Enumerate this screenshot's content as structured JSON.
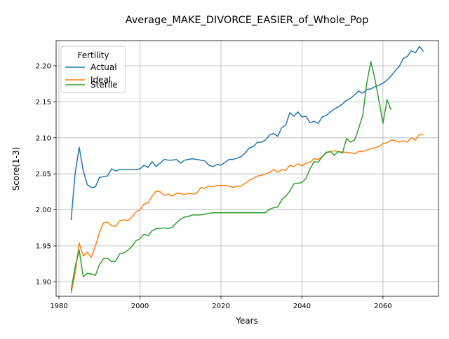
{
  "chart_data": {
    "type": "line",
    "title": "Average_MAKE_DIVORCE_EASIER_of_Whole_Pop",
    "xlabel": "Years",
    "ylabel": "Score(1-3)",
    "xlim": [
      1979.65,
      1980.0
    ],
    "ylim": [
      1.88,
      2.235
    ],
    "xticks": [
      1980,
      2000,
      2020,
      2040,
      2060
    ],
    "yticks": [
      1.9,
      1.95,
      2.0,
      2.05,
      2.1,
      2.15,
      2.2
    ],
    "grid": true,
    "legend": {
      "title": "Fertility",
      "placement": "top-left"
    },
    "series": [
      {
        "name": "Actual",
        "color": "#1f77b4",
        "x": [
          1983,
          1984,
          1985,
          1986,
          1987,
          1988,
          1989,
          1990,
          1991,
          1992,
          1993,
          1994,
          1995,
          1996,
          1997,
          1998,
          1999,
          2000,
          2001,
          2002,
          2003,
          2004,
          2005,
          2006,
          2007,
          2008,
          2009,
          2010,
          2011,
          2012,
          2013,
          2014,
          2015,
          2016,
          2017,
          2018,
          2019,
          2020,
          2021,
          2022,
          2023,
          2024,
          2025,
          2026,
          2027,
          2028,
          2029,
          2030,
          2031,
          2032,
          2033,
          2034,
          2035,
          2036,
          2037,
          2038,
          2039,
          2040,
          2041,
          2042,
          2043,
          2044,
          2045,
          2046,
          2047,
          2048,
          2049,
          2050,
          2051,
          2052,
          2053,
          2054,
          2055,
          2056,
          2057,
          2058,
          2059,
          2060,
          2061,
          2062,
          2063,
          2064,
          2065,
          2066,
          2067,
          2068,
          2069,
          2070
        ],
        "values": [
          1.986,
          2.051,
          2.087,
          2.054,
          2.035,
          2.031,
          2.032,
          2.045,
          2.046,
          2.047,
          2.057,
          2.054,
          2.056,
          2.056,
          2.056,
          2.056,
          2.056,
          2.057,
          2.062,
          2.059,
          2.067,
          2.06,
          2.065,
          2.07,
          2.069,
          2.069,
          2.07,
          2.065,
          2.069,
          2.07,
          2.071,
          2.07,
          2.069,
          2.068,
          2.062,
          2.06,
          2.063,
          2.062,
          2.066,
          2.07,
          2.07,
          2.072,
          2.074,
          2.079,
          2.086,
          2.088,
          2.094,
          2.094,
          2.097,
          2.104,
          2.106,
          2.102,
          2.114,
          2.118,
          2.135,
          2.13,
          2.136,
          2.129,
          2.13,
          2.121,
          2.123,
          2.12,
          2.129,
          2.131,
          2.136,
          2.14,
          2.143,
          2.147,
          2.152,
          2.155,
          2.16,
          2.165,
          2.162,
          2.167,
          2.168,
          2.171,
          2.173,
          2.176,
          2.18,
          2.186,
          2.193,
          2.199,
          2.21,
          2.213,
          2.221,
          2.218,
          2.227,
          2.22
        ]
      },
      {
        "name": "Ideal",
        "color": "#ff7f0e",
        "x": [
          1983,
          1984,
          1985,
          1986,
          1987,
          1988,
          1989,
          1990,
          1991,
          1992,
          1993,
          1994,
          1995,
          1996,
          1997,
          1998,
          1999,
          2000,
          2001,
          2002,
          2003,
          2004,
          2005,
          2006,
          2007,
          2008,
          2009,
          2010,
          2011,
          2012,
          2013,
          2014,
          2015,
          2016,
          2017,
          2018,
          2019,
          2020,
          2021,
          2022,
          2023,
          2024,
          2025,
          2026,
          2027,
          2028,
          2029,
          2030,
          2031,
          2032,
          2033,
          2034,
          2035,
          2036,
          2037,
          2038,
          2039,
          2040,
          2041,
          2042,
          2043,
          2044,
          2045,
          2046,
          2047,
          2048,
          2049,
          2050,
          2051,
          2052,
          2053,
          2054,
          2055,
          2056,
          2057,
          2058,
          2059,
          2060,
          2061,
          2062,
          2063,
          2064,
          2065,
          2066,
          2067,
          2068,
          2069,
          2070
        ],
        "values": [
          1.884,
          1.912,
          1.954,
          1.936,
          1.941,
          1.934,
          1.95,
          1.968,
          1.982,
          1.983,
          1.978,
          1.977,
          1.985,
          1.986,
          1.985,
          1.99,
          1.997,
          2.0,
          2.008,
          2.01,
          2.019,
          2.026,
          2.025,
          2.02,
          2.022,
          2.019,
          2.023,
          2.023,
          2.021,
          2.023,
          2.022,
          2.023,
          2.031,
          2.03,
          2.033,
          2.032,
          2.034,
          2.034,
          2.034,
          2.033,
          2.031,
          2.033,
          2.033,
          2.037,
          2.041,
          2.044,
          2.047,
          2.048,
          2.05,
          2.052,
          2.056,
          2.052,
          2.056,
          2.055,
          2.062,
          2.06,
          2.064,
          2.061,
          2.065,
          2.066,
          2.071,
          2.07,
          2.074,
          2.079,
          2.081,
          2.082,
          2.081,
          2.08,
          2.08,
          2.079,
          2.078,
          2.081,
          2.081,
          2.083,
          2.085,
          2.086,
          2.088,
          2.092,
          2.093,
          2.097,
          2.096,
          2.094,
          2.096,
          2.094,
          2.1,
          2.097,
          2.105,
          2.104
        ]
      },
      {
        "name": "Sterile",
        "color": "#2ca02c",
        "x": [
          1983,
          1984,
          1985,
          1986,
          1987,
          1988,
          1989,
          1990,
          1991,
          1992,
          1993,
          1994,
          1995,
          1996,
          1997,
          1998,
          1999,
          2000,
          2001,
          2002,
          2003,
          2004,
          2005,
          2006,
          2007,
          2008,
          2009,
          2010,
          2011,
          2012,
          2013,
          2014,
          2015,
          2016,
          2017,
          2018,
          2019,
          2020,
          2021,
          2022,
          2023,
          2024,
          2025,
          2026,
          2027,
          2028,
          2029,
          2030,
          2031,
          2032,
          2033,
          2034,
          2035,
          2036,
          2037,
          2038,
          2039,
          2040,
          2041,
          2042,
          2043,
          2044,
          2045,
          2046,
          2047,
          2048,
          2049,
          2050,
          2051,
          2052,
          2053,
          2054,
          2055,
          2056,
          2057,
          2058,
          2059,
          2060,
          2061,
          2062
        ],
        "values": [
          1.888,
          1.921,
          1.944,
          1.907,
          1.912,
          1.911,
          1.909,
          1.924,
          1.932,
          1.933,
          1.928,
          1.929,
          1.939,
          1.94,
          1.944,
          1.949,
          1.957,
          1.96,
          1.966,
          1.964,
          1.971,
          1.974,
          1.974,
          1.975,
          1.974,
          1.976,
          1.982,
          1.987,
          1.99,
          1.991,
          1.993,
          1.993,
          1.993,
          1.994,
          1.995,
          1.996,
          1.996,
          1.996,
          1.996,
          1.996,
          1.996,
          1.996,
          1.996,
          1.996,
          1.996,
          1.996,
          1.996,
          1.996,
          1.996,
          2.001,
          2.003,
          2.004,
          2.014,
          2.019,
          2.026,
          2.036,
          2.037,
          2.038,
          2.044,
          2.057,
          2.067,
          2.066,
          2.074,
          2.08,
          2.081,
          2.076,
          2.081,
          2.079,
          2.099,
          2.094,
          2.097,
          2.113,
          2.131,
          2.176,
          2.206,
          2.182,
          2.152,
          2.12,
          2.153,
          2.139
        ]
      }
    ]
  }
}
